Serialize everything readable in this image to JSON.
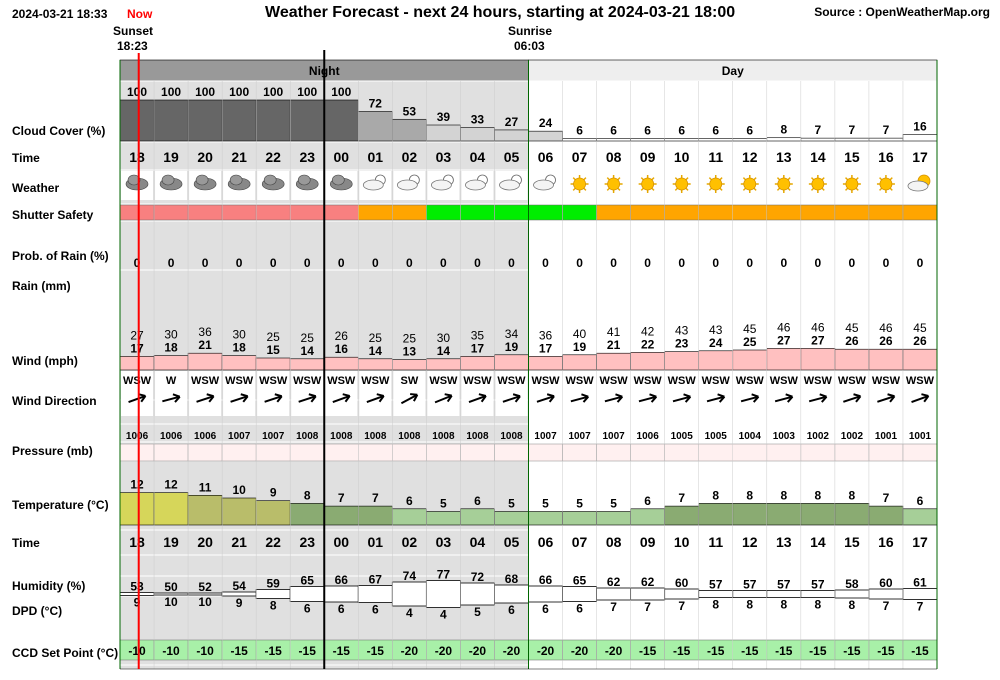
{
  "header": {
    "datetime": "2024-03-21 18:33",
    "now_label": "Now",
    "title": "Weather Forecast - next 24 hours, starting at 2024-03-21 18:00",
    "source": "Source : OpenWeatherMap.org",
    "sunset_label": "Sunset",
    "sunset_time": "18:23",
    "sunrise_label": "Sunrise",
    "sunrise_time": "06:03",
    "night_label": "Night",
    "day_label": "Day"
  },
  "labels": {
    "cloud_cover": "Cloud Cover (%)",
    "time": "Time",
    "weather": "Weather",
    "shutter_safety": "Shutter Safety",
    "prob_rain": "Prob. of Rain (%)",
    "rain": "Rain (mm)",
    "wind": "Wind (mph)",
    "wind_direction": "Wind Direction",
    "pressure": "Pressure (mb)",
    "temperature": "Temperature (°C)",
    "time2": "Time",
    "humidity": "Humidity (%)",
    "dpd": "DPD (°C)",
    "ccd": "CCD Set Point (°C)"
  },
  "chart_data": {
    "type": "table",
    "hours": [
      "18",
      "19",
      "20",
      "21",
      "22",
      "23",
      "00",
      "01",
      "02",
      "03",
      "04",
      "05",
      "06",
      "07",
      "08",
      "09",
      "10",
      "11",
      "12",
      "13",
      "14",
      "15",
      "16",
      "17"
    ],
    "night_hours": 12,
    "cloud_cover": [
      100,
      100,
      100,
      100,
      100,
      100,
      100,
      72,
      53,
      39,
      33,
      27,
      24,
      6,
      6,
      6,
      6,
      6,
      6,
      8,
      7,
      7,
      7,
      16
    ],
    "weather": [
      "cloud",
      "cloud",
      "cloud",
      "cloud",
      "cloud",
      "cloud",
      "cloud",
      "moon-cloud",
      "moon-cloud",
      "moon-cloud",
      "moon-cloud",
      "moon-cloud",
      "moon-cloud",
      "sun",
      "sun",
      "sun",
      "sun",
      "sun",
      "sun",
      "sun",
      "sun",
      "sun",
      "sun",
      "sun-cloud"
    ],
    "shutter_safety": [
      "unsafe",
      "unsafe",
      "unsafe",
      "unsafe",
      "unsafe",
      "unsafe",
      "unsafe",
      "marginal",
      "marginal",
      "safe",
      "safe",
      "safe",
      "safe",
      "safe",
      "marginal",
      "marginal",
      "marginal",
      "marginal",
      "marginal",
      "marginal",
      "marginal",
      "marginal",
      "marginal",
      "marginal"
    ],
    "prob_rain": [
      0,
      0,
      0,
      0,
      0,
      0,
      0,
      0,
      0,
      0,
      0,
      0,
      0,
      0,
      0,
      0,
      0,
      0,
      0,
      0,
      0,
      0,
      0,
      0
    ],
    "wind_gust": [
      27,
      30,
      36,
      30,
      25,
      25,
      26,
      25,
      25,
      30,
      35,
      34,
      36,
      40,
      41,
      42,
      43,
      43,
      45,
      46,
      46,
      45,
      46,
      45
    ],
    "wind_speed": [
      17,
      18,
      21,
      18,
      15,
      14,
      16,
      14,
      13,
      14,
      17,
      19,
      17,
      19,
      21,
      22,
      23,
      24,
      25,
      27,
      27,
      26,
      26,
      26
    ],
    "wind_direction": [
      "WSW",
      "W",
      "WSW",
      "WSW",
      "WSW",
      "WSW",
      "WSW",
      "WSW",
      "SW",
      "WSW",
      "WSW",
      "WSW",
      "WSW",
      "WSW",
      "WSW",
      "WSW",
      "WSW",
      "WSW",
      "WSW",
      "WSW",
      "WSW",
      "WSW",
      "WSW",
      "WSW"
    ],
    "wind_angle": [
      -20,
      -15,
      -18,
      -18,
      -18,
      -18,
      -20,
      -20,
      -28,
      -22,
      -20,
      -18,
      -18,
      -15,
      -15,
      -15,
      -15,
      -15,
      -15,
      -15,
      -15,
      -18,
      -18,
      -20
    ],
    "pressure": [
      1006,
      1006,
      1006,
      1007,
      1007,
      1008,
      1008,
      1008,
      1008,
      1008,
      1008,
      1008,
      1007,
      1007,
      1007,
      1006,
      1005,
      1005,
      1004,
      1003,
      1002,
      1002,
      1001,
      1001
    ],
    "temperature": [
      12,
      12,
      11,
      10,
      9,
      8,
      7,
      7,
      6,
      5,
      6,
      5,
      5,
      5,
      5,
      6,
      7,
      8,
      8,
      8,
      8,
      8,
      7,
      6
    ],
    "humidity": [
      53,
      50,
      52,
      54,
      59,
      65,
      66,
      67,
      74,
      77,
      72,
      68,
      66,
      65,
      62,
      62,
      60,
      57,
      57,
      57,
      57,
      58,
      60,
      61
    ],
    "dpd": [
      9,
      10,
      10,
      9,
      8,
      6,
      6,
      6,
      4,
      4,
      5,
      6,
      6,
      6,
      7,
      7,
      7,
      8,
      8,
      8,
      8,
      8,
      7,
      7
    ],
    "ccd_set_point": [
      -10,
      -10,
      -10,
      -15,
      -15,
      -15,
      -15,
      -15,
      -20,
      -20,
      -20,
      -20,
      -20,
      -20,
      -20,
      -15,
      -15,
      -15,
      -15,
      -15,
      -15,
      -15,
      -15,
      -15
    ],
    "colors": {
      "night_band": "#e0e0e0",
      "cloud_night": "#666666",
      "cloud_mid": "#a9a9a9",
      "cloud_low": "#d3d3d3",
      "unsafe": "#f88080",
      "marginal": "#ffa500",
      "safe": "#00ee00",
      "wind_bar": "#ffc0c0",
      "pressure_bar": "#fff0f0",
      "temp_warm": "#b9bd6a",
      "temp_hot": "#d6d65a",
      "temp_mid": "#8aab72",
      "temp_cool": "#a6cf98",
      "ccd": "#a8f0a8",
      "now_line": "#ff0000"
    }
  }
}
